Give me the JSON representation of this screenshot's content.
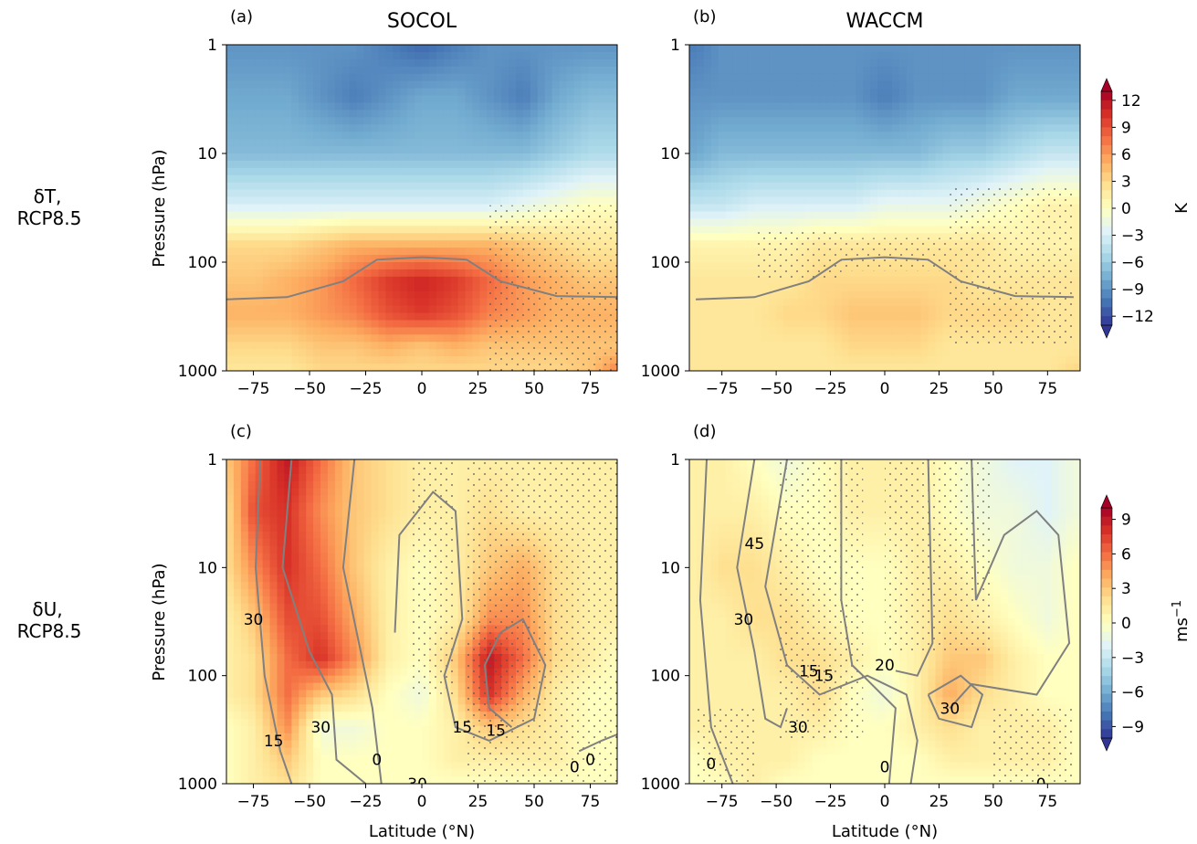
{
  "rows": [
    {
      "label_line1": "δT,",
      "label_line2": "RCP8.5"
    },
    {
      "label_line1": "δU,",
      "label_line2": "RCP8.5"
    }
  ],
  "columns": [
    "SOCOL",
    "WACCM"
  ],
  "colorbars": [
    {
      "unit": "K",
      "ticks": [
        "12",
        "9",
        "6",
        "3",
        "0",
        "−3",
        "−6",
        "−9",
        "−12"
      ]
    },
    {
      "unit": "ms−1",
      "ticks": [
        "9",
        "6",
        "3",
        "0",
        "−3",
        "−6",
        "−9"
      ]
    }
  ],
  "colors": {
    "diverging": [
      "#313695",
      "#4575b4",
      "#74add1",
      "#abd9e9",
      "#e0f3f8",
      "#ffffbf",
      "#fee090",
      "#fdae61",
      "#f46d43",
      "#d73027",
      "#a50026"
    ],
    "contour": "#808080",
    "stipple": "#555555"
  },
  "chart_data": [
    {
      "type": "heatmap",
      "panel": "(a)",
      "title": "SOCOL",
      "ylabel": "Pressure (hPa)",
      "xlabel": "",
      "x_ticks": [
        "−75",
        "−50",
        "−25",
        "0",
        "25",
        "50",
        "75"
      ],
      "y_ticks": [
        "1",
        "10",
        "100",
        "1000"
      ],
      "xlim": [
        -87,
        87
      ],
      "ylim": [
        1000,
        1
      ],
      "y_scale": "log",
      "lat": [
        -87,
        -75,
        -60,
        -45,
        -30,
        -15,
        0,
        15,
        30,
        45,
        60,
        75,
        87
      ],
      "pressure": [
        1,
        3,
        10,
        30,
        70,
        150,
        300,
        600,
        1000
      ],
      "values": [
        [
          -9,
          -9,
          -9,
          -9,
          -9,
          -10,
          -11,
          -10,
          -9,
          -9,
          -9,
          -9,
          -9
        ],
        [
          -8,
          -8,
          -8,
          -9,
          -10,
          -9,
          -8,
          -8,
          -9,
          -10,
          -8,
          -7,
          -7
        ],
        [
          -7,
          -7,
          -7,
          -7,
          -7,
          -7,
          -7,
          -7,
          -7,
          -7,
          -6,
          -5,
          -5
        ],
        [
          -3,
          -3,
          -3,
          -3,
          -3,
          -3,
          -3,
          -3,
          -3,
          -2,
          -1,
          0,
          0
        ],
        [
          3,
          3,
          3,
          4,
          5,
          5,
          5,
          5,
          5,
          4,
          3,
          2,
          2
        ],
        [
          4,
          4,
          5,
          6,
          8,
          10,
          11,
          10,
          8,
          6,
          5,
          4,
          4
        ],
        [
          5,
          5,
          5,
          6,
          7,
          9,
          10,
          9,
          7,
          6,
          5,
          5,
          5
        ],
        [
          3,
          3,
          3,
          4,
          4,
          5,
          4,
          5,
          4,
          4,
          4,
          4,
          4
        ],
        [
          2,
          2,
          2,
          3,
          3,
          3,
          3,
          3,
          3,
          3,
          3,
          4,
          7
        ]
      ],
      "contour_tropopause_hPa": [
        [
          -87,
          220
        ],
        [
          -60,
          210
        ],
        [
          -35,
          150
        ],
        [
          -20,
          95
        ],
        [
          0,
          90
        ],
        [
          20,
          95
        ],
        [
          35,
          150
        ],
        [
          60,
          205
        ],
        [
          87,
          210
        ]
      ]
    },
    {
      "type": "heatmap",
      "panel": "(b)",
      "title": "WACCM",
      "ylabel": "",
      "xlabel": "",
      "x_ticks": [
        "−75",
        "−50",
        "−25",
        "0",
        "25",
        "50",
        "75"
      ],
      "y_ticks": [
        "1",
        "10",
        "100",
        "1000"
      ],
      "xlim": [
        -90,
        90
      ],
      "ylim": [
        1000,
        1
      ],
      "y_scale": "log",
      "lat": [
        -87,
        -75,
        -60,
        -45,
        -30,
        -15,
        0,
        15,
        30,
        45,
        60,
        75,
        87
      ],
      "pressure": [
        1,
        3,
        10,
        30,
        70,
        150,
        300,
        600,
        1000
      ],
      "values": [
        [
          -10,
          -9,
          -9,
          -9,
          -9,
          -9,
          -9,
          -9,
          -9,
          -9,
          -9,
          -9,
          -9
        ],
        [
          -9,
          -9,
          -9,
          -9,
          -9,
          -9,
          -10,
          -9,
          -9,
          -9,
          -8,
          -8,
          -8
        ],
        [
          -8,
          -7,
          -7,
          -7,
          -7,
          -7,
          -7,
          -7,
          -6,
          -6,
          -5,
          -4,
          -4
        ],
        [
          -4,
          -4,
          -3,
          -3,
          -3,
          -3,
          -2,
          -2,
          -2,
          -1,
          0,
          1,
          1
        ],
        [
          1,
          1,
          1,
          1,
          2,
          2,
          2,
          2,
          2,
          2,
          1,
          1,
          1
        ],
        [
          2,
          2,
          2,
          2,
          3,
          3,
          3,
          3,
          3,
          2,
          2,
          2,
          2
        ],
        [
          2,
          2,
          2,
          3,
          3,
          4,
          4,
          4,
          3,
          3,
          3,
          2,
          2
        ],
        [
          2,
          2,
          2,
          2,
          2,
          3,
          3,
          3,
          2,
          2,
          2,
          2,
          2
        ],
        [
          2,
          2,
          2,
          2,
          2,
          2,
          2,
          2,
          2,
          2,
          2,
          2,
          3
        ]
      ],
      "contour_tropopause_hPa": [
        [
          -87,
          220
        ],
        [
          -60,
          210
        ],
        [
          -35,
          150
        ],
        [
          -20,
          95
        ],
        [
          0,
          90
        ],
        [
          20,
          95
        ],
        [
          35,
          150
        ],
        [
          60,
          205
        ],
        [
          87,
          210
        ]
      ]
    },
    {
      "type": "heatmap",
      "panel": "(c)",
      "title": "",
      "ylabel": "Pressure (hPa)",
      "xlabel": "Latitude (°N)",
      "x_ticks": [
        "−75",
        "−50",
        "−25",
        "0",
        "25",
        "50",
        "75"
      ],
      "y_ticks": [
        "1",
        "10",
        "100",
        "1000"
      ],
      "xlim": [
        -87,
        87
      ],
      "ylim": [
        1000,
        1
      ],
      "y_scale": "log",
      "lat": [
        -87,
        -75,
        -60,
        -45,
        -30,
        -15,
        0,
        15,
        30,
        45,
        60,
        75,
        87
      ],
      "pressure": [
        1,
        3,
        10,
        30,
        70,
        150,
        300,
        600,
        1000
      ],
      "values": [
        [
          3,
          6,
          9,
          6,
          3,
          2,
          1,
          1,
          1,
          1,
          1,
          1,
          1
        ],
        [
          2,
          7,
          8,
          5,
          3,
          2,
          1,
          1,
          2,
          1,
          1,
          1,
          1
        ],
        [
          2,
          5,
          8,
          6,
          3,
          1,
          0,
          1,
          3,
          4,
          2,
          1,
          1
        ],
        [
          1,
          3,
          7,
          7,
          4,
          1,
          0,
          1,
          5,
          5,
          2,
          1,
          1
        ],
        [
          1,
          2,
          6,
          8,
          5,
          1,
          0,
          3,
          9,
          6,
          2,
          1,
          0
        ],
        [
          1,
          2,
          6,
          3,
          2,
          0,
          -1,
          2,
          8,
          4,
          1,
          0,
          0
        ],
        [
          0,
          1,
          5,
          -1,
          -1,
          0,
          0,
          1,
          3,
          2,
          1,
          0,
          0
        ],
        [
          0,
          1,
          3,
          0,
          0,
          0,
          0,
          1,
          1,
          1,
          1,
          0,
          0
        ],
        [
          0,
          1,
          2,
          0,
          0,
          0,
          0,
          0,
          0,
          0,
          0,
          0,
          0
        ]
      ],
      "contour_labels": [
        "15",
        "30",
        "30",
        "15",
        "0",
        "15",
        "30",
        "0",
        "0"
      ]
    },
    {
      "type": "heatmap",
      "panel": "(d)",
      "title": "",
      "ylabel": "",
      "xlabel": "Latitude (°N)",
      "x_ticks": [
        "−75",
        "−50",
        "−25",
        "0",
        "25",
        "50",
        "75"
      ],
      "y_ticks": [
        "1",
        "10",
        "100",
        "1000"
      ],
      "xlim": [
        -90,
        90
      ],
      "ylim": [
        1000,
        1
      ],
      "y_scale": "log",
      "lat": [
        -87,
        -75,
        -60,
        -45,
        -30,
        -15,
        0,
        15,
        30,
        45,
        60,
        75,
        87
      ],
      "pressure": [
        1,
        3,
        10,
        30,
        70,
        150,
        300,
        600,
        1000
      ],
      "values": [
        [
          1,
          1,
          0,
          -1,
          0,
          1,
          1,
          1,
          0,
          -1,
          -2,
          -2,
          -1
        ],
        [
          1,
          1,
          1,
          0,
          0,
          1,
          1,
          1,
          0,
          -1,
          -1,
          -2,
          -1
        ],
        [
          1,
          2,
          2,
          1,
          0,
          0,
          0,
          1,
          1,
          0,
          -1,
          -1,
          0
        ],
        [
          1,
          1,
          2,
          2,
          1,
          0,
          0,
          1,
          2,
          1,
          0,
          -1,
          0
        ],
        [
          1,
          1,
          1,
          2,
          2,
          1,
          0,
          1,
          3,
          3,
          1,
          0,
          0
        ],
        [
          1,
          1,
          1,
          1,
          2,
          0,
          -1,
          1,
          4,
          2,
          1,
          0,
          0
        ],
        [
          1,
          1,
          1,
          1,
          1,
          0,
          0,
          1,
          2,
          1,
          1,
          1,
          0
        ],
        [
          0,
          1,
          1,
          1,
          0,
          0,
          0,
          0,
          1,
          1,
          1,
          1,
          0
        ],
        [
          0,
          0,
          1,
          0,
          0,
          0,
          0,
          0,
          0,
          0,
          0,
          0,
          0
        ]
      ],
      "contour_labels": [
        "45",
        "30",
        "15",
        "20",
        "15",
        "30",
        "30",
        "0",
        "0",
        "0"
      ]
    }
  ]
}
